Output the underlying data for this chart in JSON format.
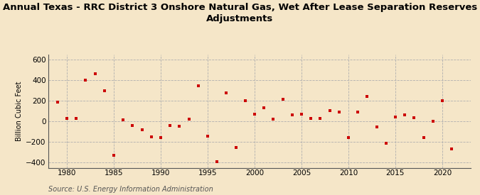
{
  "title": "Annual Texas - RRC District 3 Onshore Natural Gas, Wet After Lease Separation Reserves\nAdjustments",
  "ylabel": "Billion Cubic Feet",
  "source": "Source: U.S. Energy Information Administration",
  "background_color": "#f5e6c8",
  "marker_color": "#cc0000",
  "years": [
    1979,
    1980,
    1981,
    1982,
    1983,
    1984,
    1985,
    1986,
    1987,
    1988,
    1989,
    1990,
    1991,
    1992,
    1993,
    1994,
    1995,
    1996,
    1997,
    1998,
    1999,
    2000,
    2001,
    2002,
    2003,
    2004,
    2005,
    2006,
    2007,
    2008,
    2009,
    2010,
    2011,
    2012,
    2013,
    2014,
    2015,
    2016,
    2017,
    2018,
    2019,
    2020,
    2021
  ],
  "values": [
    185,
    30,
    30,
    405,
    465,
    300,
    -330,
    15,
    -40,
    -80,
    -150,
    -155,
    -40,
    -45,
    20,
    345,
    -145,
    -390,
    280,
    -255,
    205,
    70,
    130,
    20,
    215,
    65,
    70,
    30,
    30,
    105,
    90,
    -155,
    90,
    245,
    -50,
    -215,
    45,
    65,
    35,
    -160,
    5,
    200,
    -270
  ],
  "ylim": [
    -450,
    650
  ],
  "yticks": [
    -400,
    -200,
    0,
    200,
    400,
    600
  ],
  "xlim": [
    1978,
    2023
  ],
  "xticks": [
    1980,
    1985,
    1990,
    1995,
    2000,
    2005,
    2010,
    2015,
    2020
  ],
  "title_fontsize": 9.5,
  "axis_fontsize": 7.5,
  "ylabel_fontsize": 7.0,
  "source_fontsize": 7.0,
  "marker_size": 12
}
